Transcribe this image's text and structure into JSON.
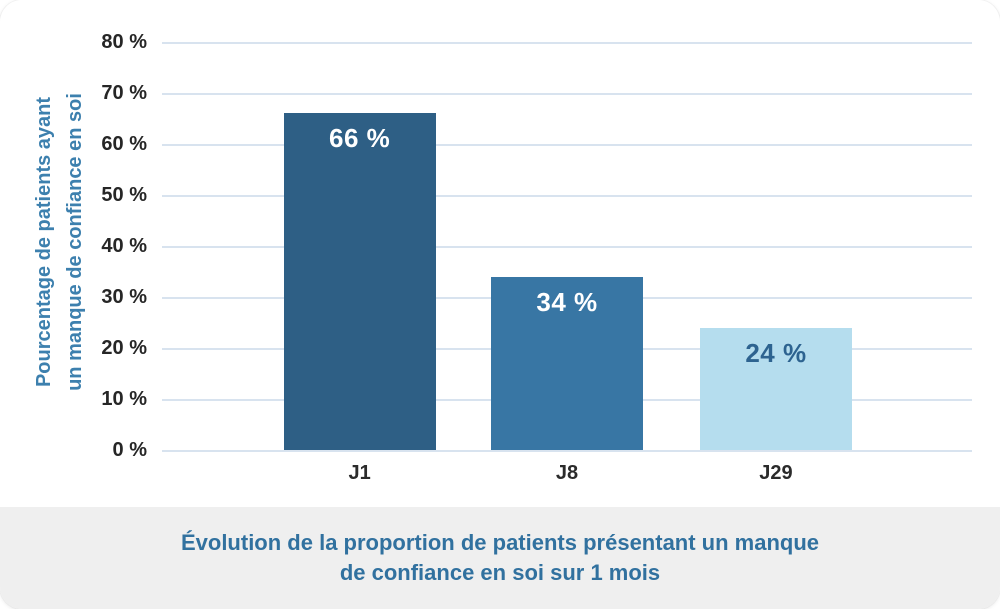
{
  "chart_data": {
    "type": "bar",
    "categories": [
      "J1",
      "J8",
      "J29"
    ],
    "values": [
      66,
      34,
      24
    ],
    "value_labels": [
      "66 %",
      "34 %",
      "24 %"
    ],
    "title": "Évolution de la proportion de patients présentant un manque de confiance en soi sur 1 mois",
    "ylabel": "Pourcentage de patients ayant un manque de confiance en soi",
    "xlabel": "",
    "ylim": [
      0,
      80
    ],
    "ytick_interval": 10,
    "ytick_labels": [
      "80 %",
      "70 %",
      "60 %",
      "50 %",
      "40 %",
      "30 %",
      "20 %",
      "10 %",
      "0 %"
    ],
    "grid": "horizontal",
    "legend": "none",
    "bar_colors": [
      "#2E5F85",
      "#3876A4",
      "#B5DDEE"
    ],
    "value_label_colors": [
      "#FFFFFF",
      "#FFFFFF",
      "#2D6390"
    ]
  },
  "y_axis_title": {
    "line1": "Pourcentage de patients ayant",
    "line2": "un manque de confiance en soi"
  },
  "caption": {
    "line1": "Évolution de la proportion de patients présentant un manque",
    "line2": "de confiance en soi sur 1 mois"
  },
  "colors": {
    "axis_text": "#2B2B2B",
    "blue_text": "#31719F",
    "y_title_text": "#3D80AE",
    "gridline": "#D8E3EF",
    "caption_bg": "#EFEFEF",
    "card_bg": "#FFFFFF"
  }
}
